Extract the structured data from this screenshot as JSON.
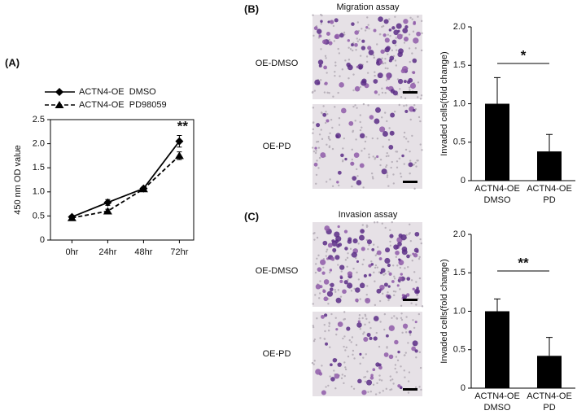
{
  "chart_data": [
    {
      "type": "line",
      "panel_label": "(A)",
      "ylabel": "450 nm OD value",
      "categories": [
        "0hr",
        "24hr",
        "48hr",
        "72hr"
      ],
      "series": [
        {
          "name": "ACTN4-OE  DMSO",
          "color": "#000000",
          "marker": "diamond",
          "dashed": false,
          "values": [
            0.48,
            0.78,
            1.07,
            2.05
          ],
          "errors": [
            0.03,
            0.06,
            0.03,
            0.12
          ]
        },
        {
          "name": "ACTN4-OE  PD98059",
          "color": "#000000",
          "marker": "triangle",
          "dashed": true,
          "values": [
            0.46,
            0.6,
            1.06,
            1.75
          ],
          "errors": [
            0.03,
            0.04,
            0.03,
            0.08
          ]
        }
      ],
      "ylim": [
        0,
        2.5
      ],
      "yticks": [
        0,
        0.5,
        1.0,
        1.5,
        2.0,
        2.5
      ],
      "annotation": "**"
    },
    {
      "type": "bar",
      "panel_label": "(B)",
      "assay_title": "Migration assay",
      "image_labels": [
        "OE-DMSO",
        "OE-PD"
      ],
      "ylabel": "Invaded cells(fold change)",
      "categories": [
        [
          "ACTN4-OE",
          "DMSO"
        ],
        [
          "ACTN4-OE",
          "PD"
        ]
      ],
      "values": [
        1.0,
        0.38
      ],
      "errors": [
        0.34,
        0.22
      ],
      "color": "#000000",
      "ylim": [
        0,
        2.0
      ],
      "yticks": [
        0,
        0.5,
        1.0,
        1.5,
        2.0
      ],
      "annotation": "*"
    },
    {
      "type": "bar",
      "panel_label": "(C)",
      "assay_title": "Invasion assay",
      "image_labels": [
        "OE-DMSO",
        "OE-PD"
      ],
      "ylabel": "Invaded cells(fold change)",
      "categories": [
        [
          "ACTN4-OE",
          "DMSO"
        ],
        [
          "ACTN4-OE",
          "PD"
        ]
      ],
      "values": [
        1.0,
        0.42
      ],
      "errors": [
        0.16,
        0.24
      ],
      "color": "#000000",
      "ylim": [
        0,
        2.0
      ],
      "yticks": [
        0,
        0.5,
        1.0,
        1.5,
        2.0
      ],
      "annotation": "**"
    }
  ]
}
